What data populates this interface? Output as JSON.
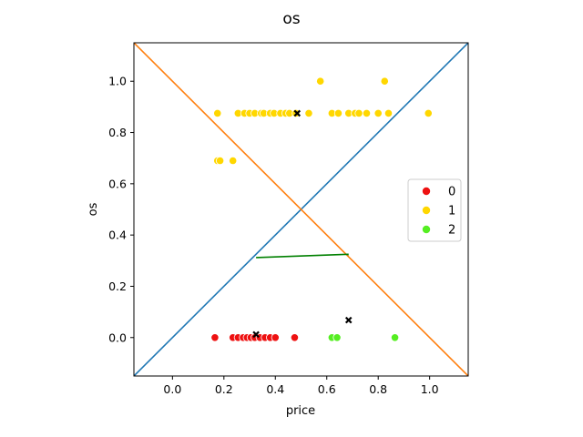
{
  "chart_data": {
    "type": "scatter",
    "title": "os",
    "xlabel": "price",
    "ylabel": "os",
    "xlim": [
      -0.15,
      1.15
    ],
    "ylim": [
      -0.15,
      1.15
    ],
    "xticks": [
      "0.0",
      "0.2",
      "0.4",
      "0.6",
      "0.8",
      "1.0"
    ],
    "yticks": [
      "0.0",
      "0.2",
      "0.4",
      "0.6",
      "0.8",
      "1.0"
    ],
    "grid": false,
    "legend_position": "center-right",
    "series": [
      {
        "name": "0",
        "color": "#ee1111",
        "points": [
          [
            0.165,
            0.0
          ],
          [
            0.235,
            0.0
          ],
          [
            0.255,
            0.0
          ],
          [
            0.275,
            0.0
          ],
          [
            0.29,
            0.0
          ],
          [
            0.305,
            0.0
          ],
          [
            0.32,
            0.0
          ],
          [
            0.34,
            0.0
          ],
          [
            0.36,
            0.0
          ],
          [
            0.38,
            0.0
          ],
          [
            0.4,
            0.0
          ],
          [
            0.475,
            0.0
          ]
        ]
      },
      {
        "name": "1",
        "color": "#ffd700",
        "points": [
          [
            0.175,
            0.875
          ],
          [
            0.255,
            0.875
          ],
          [
            0.28,
            0.875
          ],
          [
            0.3,
            0.875
          ],
          [
            0.32,
            0.875
          ],
          [
            0.345,
            0.875
          ],
          [
            0.355,
            0.875
          ],
          [
            0.38,
            0.875
          ],
          [
            0.395,
            0.875
          ],
          [
            0.42,
            0.875
          ],
          [
            0.44,
            0.875
          ],
          [
            0.455,
            0.875
          ],
          [
            0.48,
            0.875
          ],
          [
            0.53,
            0.875
          ],
          [
            0.62,
            0.875
          ],
          [
            0.645,
            0.875
          ],
          [
            0.685,
            0.875
          ],
          [
            0.71,
            0.875
          ],
          [
            0.725,
            0.875
          ],
          [
            0.755,
            0.875
          ],
          [
            0.8,
            0.875
          ],
          [
            0.84,
            0.875
          ],
          [
            0.995,
            0.875
          ],
          [
            0.175,
            0.69
          ],
          [
            0.185,
            0.69
          ],
          [
            0.235,
            0.69
          ],
          [
            0.575,
            1.0
          ],
          [
            0.825,
            1.0
          ]
        ]
      },
      {
        "name": "2",
        "color": "#55ee22",
        "points": [
          [
            0.62,
            0.0
          ],
          [
            0.64,
            0.0
          ],
          [
            0.865,
            0.0
          ]
        ]
      }
    ],
    "centroids": {
      "color": "#000000",
      "points": [
        [
          0.485,
          0.875
        ],
        [
          0.325,
          0.012
        ],
        [
          0.685,
          0.068
        ]
      ]
    },
    "lines": [
      {
        "color": "#1f77b4",
        "from": [
          -0.15,
          -0.15
        ],
        "to": [
          1.15,
          1.15
        ]
      },
      {
        "color": "#ff7f0e",
        "from": [
          -0.15,
          1.15
        ],
        "to": [
          1.15,
          -0.15
        ]
      },
      {
        "color": "#008000",
        "from": [
          0.325,
          0.312
        ],
        "to": [
          0.685,
          0.325
        ]
      }
    ]
  }
}
